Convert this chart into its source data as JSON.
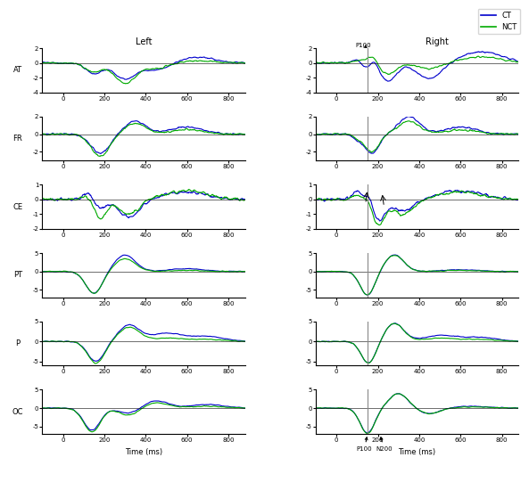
{
  "rows": [
    "AT",
    "FR",
    "CE",
    "PT",
    "P",
    "OC"
  ],
  "col_titles": [
    "Left",
    "Right"
  ],
  "legend_labels": [
    "CT",
    "NCT"
  ],
  "legend_colors": [
    "#0000cc",
    "#00aa00"
  ],
  "ct_color": "#0000cc",
  "nct_color": "#00aa00",
  "xlim": [
    -100,
    880
  ],
  "xticks": [
    0,
    200,
    400,
    600,
    800
  ],
  "xlabel": "Time (ms)",
  "ylims": {
    "AT": [
      -4,
      2
    ],
    "FR": [
      -3,
      2
    ],
    "CE": [
      -2,
      1
    ],
    "PT": [
      -7,
      5
    ],
    "P": [
      -6,
      5
    ],
    "OC": [
      -7,
      5
    ]
  },
  "yticks": {
    "AT": [
      -4,
      -2,
      0,
      2
    ],
    "FR": [
      -2,
      0,
      2
    ],
    "CE": [
      -2,
      -1,
      0,
      1
    ],
    "PT": [
      -5,
      0,
      5
    ],
    "P": [
      -5,
      0,
      5
    ],
    "OC": [
      -5,
      0,
      5
    ]
  },
  "p100_x": 150,
  "n200_x": 200,
  "vline_color": "#888888",
  "arrow_color": "black"
}
